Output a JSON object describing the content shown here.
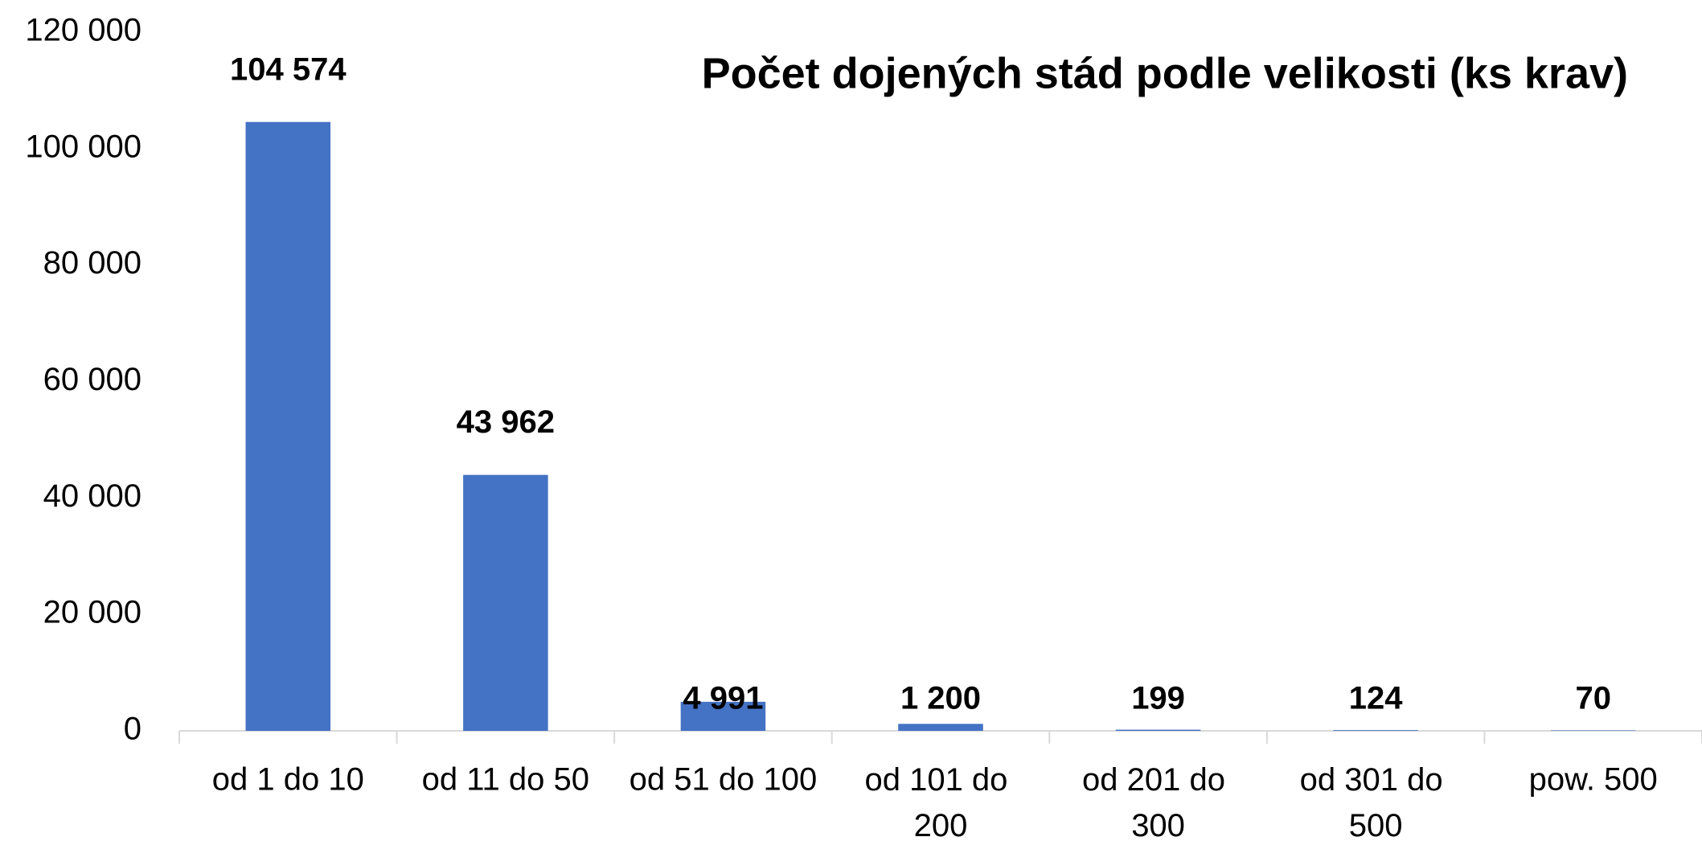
{
  "chart_data": {
    "type": "bar",
    "title": "Počet dojených stád podle velikosti (ks krav)",
    "categories": [
      "od 1 do 10",
      "od 11 do 50",
      "od 51 do 100",
      "od 101 do 200",
      "od 201 do 300",
      "od 301 do 500",
      "pow. 500"
    ],
    "values": [
      104574,
      43962,
      4991,
      1200,
      199,
      124,
      70
    ],
    "value_labels": [
      "104 574",
      "43 962",
      "4 991",
      "1 200",
      "199",
      "124",
      "70"
    ],
    "color": "#4472c4",
    "ylim": [
      0,
      120000
    ],
    "yticks": [
      0,
      {
        "value": 20000,
        "label": "20 000"
      },
      {
        "value": 40000,
        "label": "40 000"
      },
      {
        "value": 60000,
        "label": "60 000"
      },
      {
        "value": 80000,
        "label": "80 000"
      },
      {
        "value": 100000,
        "label": "100 000"
      },
      {
        "value": 120000,
        "label": "120 000"
      }
    ],
    "grid": false
  }
}
